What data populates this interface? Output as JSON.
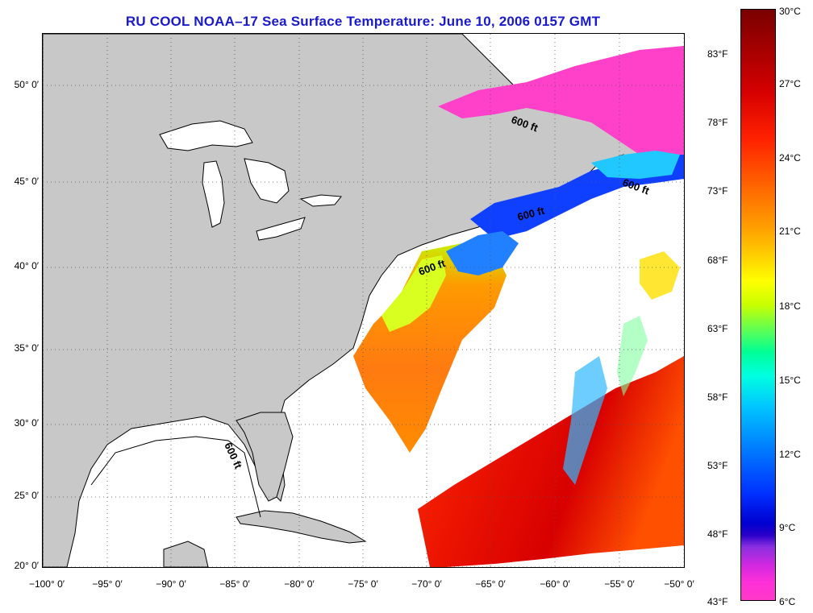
{
  "title": "RU COOL  NOAA–17  Sea Surface Temperature:  June 10, 2006 0157 GMT",
  "latitude_labels": [
    "50° 0′",
    "45° 0′",
    "40° 0′",
    "35° 0′",
    "30° 0′",
    "25° 0′",
    "20° 0′"
  ],
  "longitude_labels": [
    "−100° 0′",
    "−95° 0′",
    "−90° 0′",
    "−85° 0′",
    "−80° 0′",
    "−75° 0′",
    "−70° 0′",
    "−65° 0′",
    "−60° 0′",
    "−55° 0′",
    "−50° 0′"
  ],
  "isobath_labels": [
    "600 ft",
    "600 ft",
    "600 ft",
    "600 ft",
    "600 ft"
  ],
  "colorbar": {
    "fahrenheit_labels": [
      "83°F",
      "78°F",
      "73°F",
      "68°F",
      "63°F",
      "58°F",
      "53°F",
      "48°F",
      "43°F"
    ],
    "celsius_labels": [
      "30°C",
      "27°C",
      "24°C",
      "21°C",
      "18°C",
      "15°C",
      "12°C",
      "9°C",
      "6°C"
    ]
  },
  "colors": {
    "title": "#1a1acc",
    "land": "#c8c8c8",
    "clouds_or_no_data": "#ffffff"
  }
}
